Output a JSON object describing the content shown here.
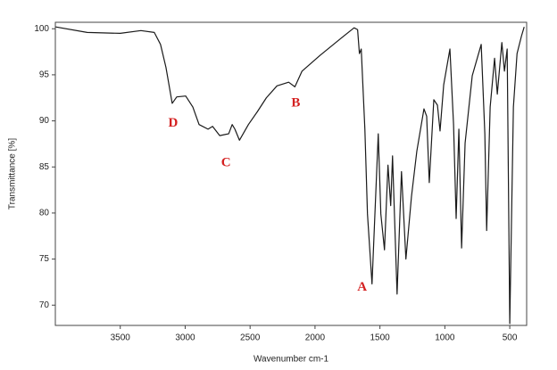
{
  "chart_data": {
    "type": "line",
    "xlabel": "Wavenumber cm-1",
    "ylabel": "Transmittance [%]",
    "xlim": [
      4000,
      370
    ],
    "ylim": [
      67.8,
      100.7
    ],
    "xticks": [
      3500,
      3000,
      2500,
      2000,
      1500,
      1000,
      500
    ],
    "yticks": [
      70,
      75,
      80,
      85,
      90,
      95,
      100
    ],
    "series": [
      {
        "color": "#1a1a1a",
        "x": [
          3997,
          3755,
          3500,
          3341,
          3238,
          3190,
          3148,
          3100,
          3065,
          2996,
          2941,
          2893,
          2824,
          2789,
          2734,
          2665,
          2638,
          2617,
          2582,
          2513,
          2444,
          2375,
          2293,
          2203,
          2155,
          2100,
          1962,
          1823,
          1699,
          1672,
          1658,
          1644,
          1616,
          1596,
          1561,
          1513,
          1493,
          1465,
          1438,
          1417,
          1403,
          1368,
          1334,
          1300,
          1257,
          1216,
          1161,
          1140,
          1120,
          1085,
          1057,
          1037,
          1009,
          961,
          933,
          913,
          892,
          871,
          844,
          789,
          720,
          692,
          678,
          651,
          617,
          596,
          561,
          541,
          520,
          500,
          472,
          444,
          410,
          389
        ],
        "values": [
          100.2,
          99.6,
          99.5,
          99.8,
          99.6,
          98.3,
          95.8,
          91.9,
          92.6,
          92.7,
          91.5,
          89.6,
          89.1,
          89.4,
          88.4,
          88.6,
          89.6,
          89.1,
          87.9,
          89.6,
          91.0,
          92.5,
          93.8,
          94.2,
          93.7,
          95.4,
          97.1,
          98.7,
          100.1,
          99.9,
          97.3,
          97.8,
          89.1,
          79.9,
          72.3,
          88.6,
          79.9,
          76.0,
          85.2,
          80.8,
          86.2,
          71.2,
          84.5,
          75.0,
          81.8,
          86.7,
          91.3,
          90.5,
          83.3,
          92.3,
          91.7,
          88.9,
          93.9,
          97.8,
          89.6,
          79.4,
          89.1,
          76.2,
          87.6,
          94.9,
          98.3,
          88.6,
          78.1,
          91.5,
          96.8,
          92.9,
          98.5,
          95.4,
          97.8,
          68.0,
          91.5,
          97.3,
          99.2,
          100.2
        ]
      }
    ],
    "annotations": [
      {
        "text": "A",
        "x": 1637,
        "y": 71.9
      },
      {
        "text": "B",
        "x": 2148,
        "y": 91.9
      },
      {
        "text": "C",
        "x": 2686,
        "y": 85.4
      },
      {
        "text": "D",
        "x": 3093,
        "y": 89.7
      }
    ]
  }
}
